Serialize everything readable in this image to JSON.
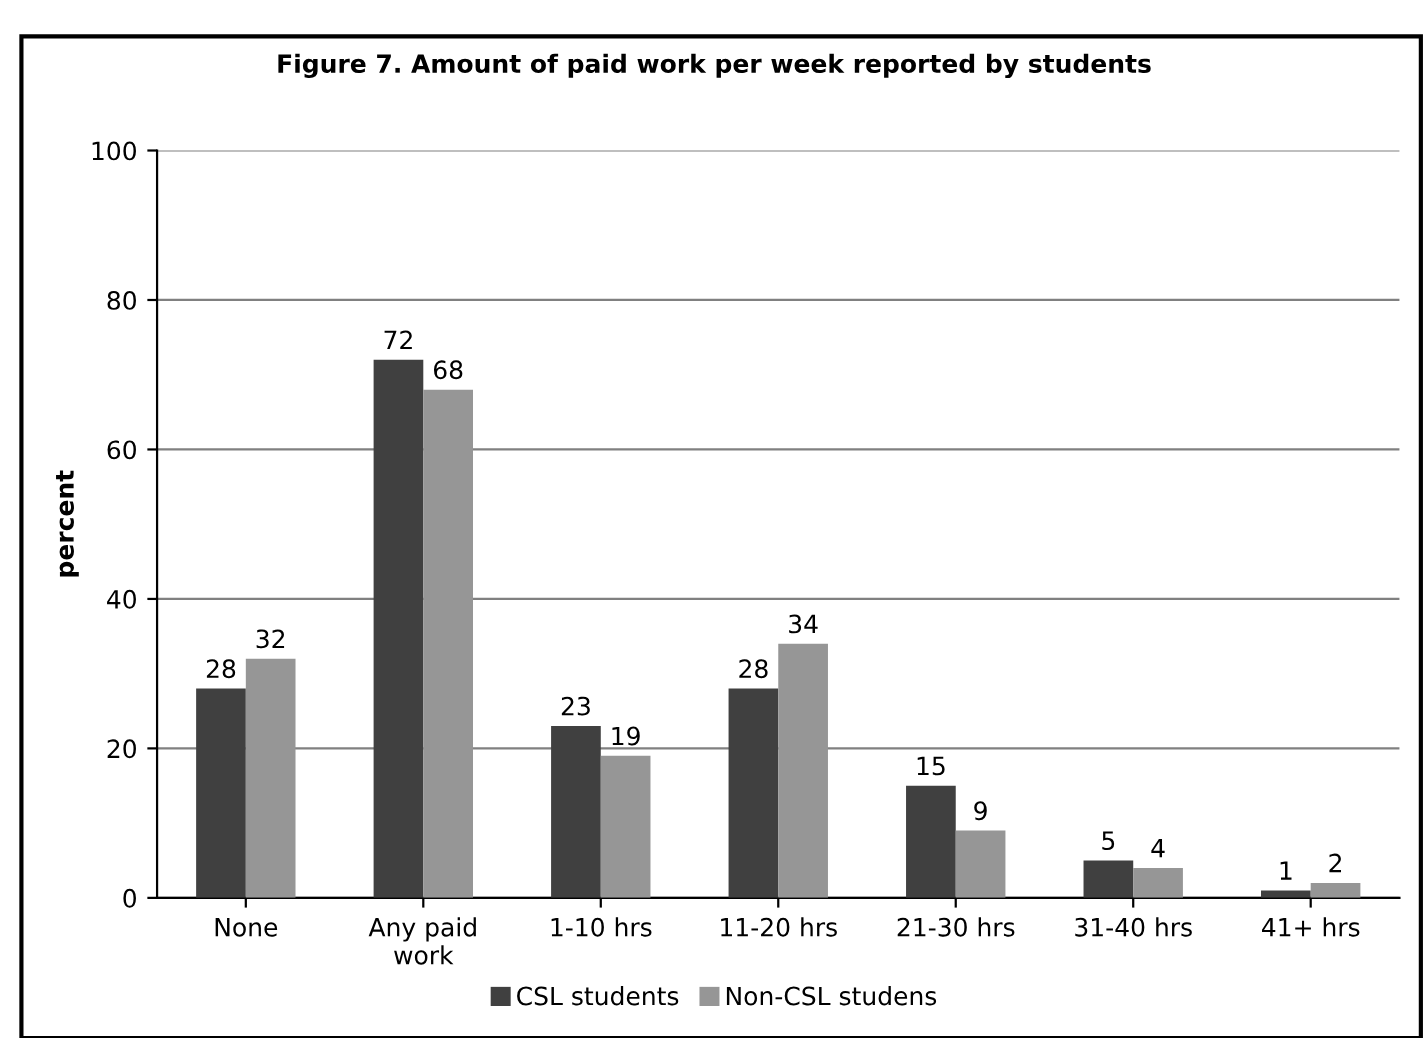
{
  "chart_data": {
    "type": "bar",
    "title": "Figure 7. Amount of paid work per week reported by students",
    "ylabel": "percent",
    "categories": [
      "None",
      "Any paid\nwork",
      "1-10 hrs",
      "11-20 hrs",
      "21-30 hrs",
      "31-40 hrs",
      "41+ hrs"
    ],
    "series": [
      {
        "name": "CSL students",
        "color": "#404040",
        "values": [
          28,
          72,
          23,
          28,
          15,
          5,
          1
        ]
      },
      {
        "name": "Non-CSL studens",
        "color": "#969696",
        "values": [
          32,
          68,
          19,
          34,
          9,
          4,
          2
        ]
      }
    ],
    "ylim": [
      0,
      100
    ],
    "yticks": [
      0,
      20,
      40,
      60,
      80,
      100
    ],
    "grid": "y",
    "legend": "bottom",
    "data_labels": true
  }
}
